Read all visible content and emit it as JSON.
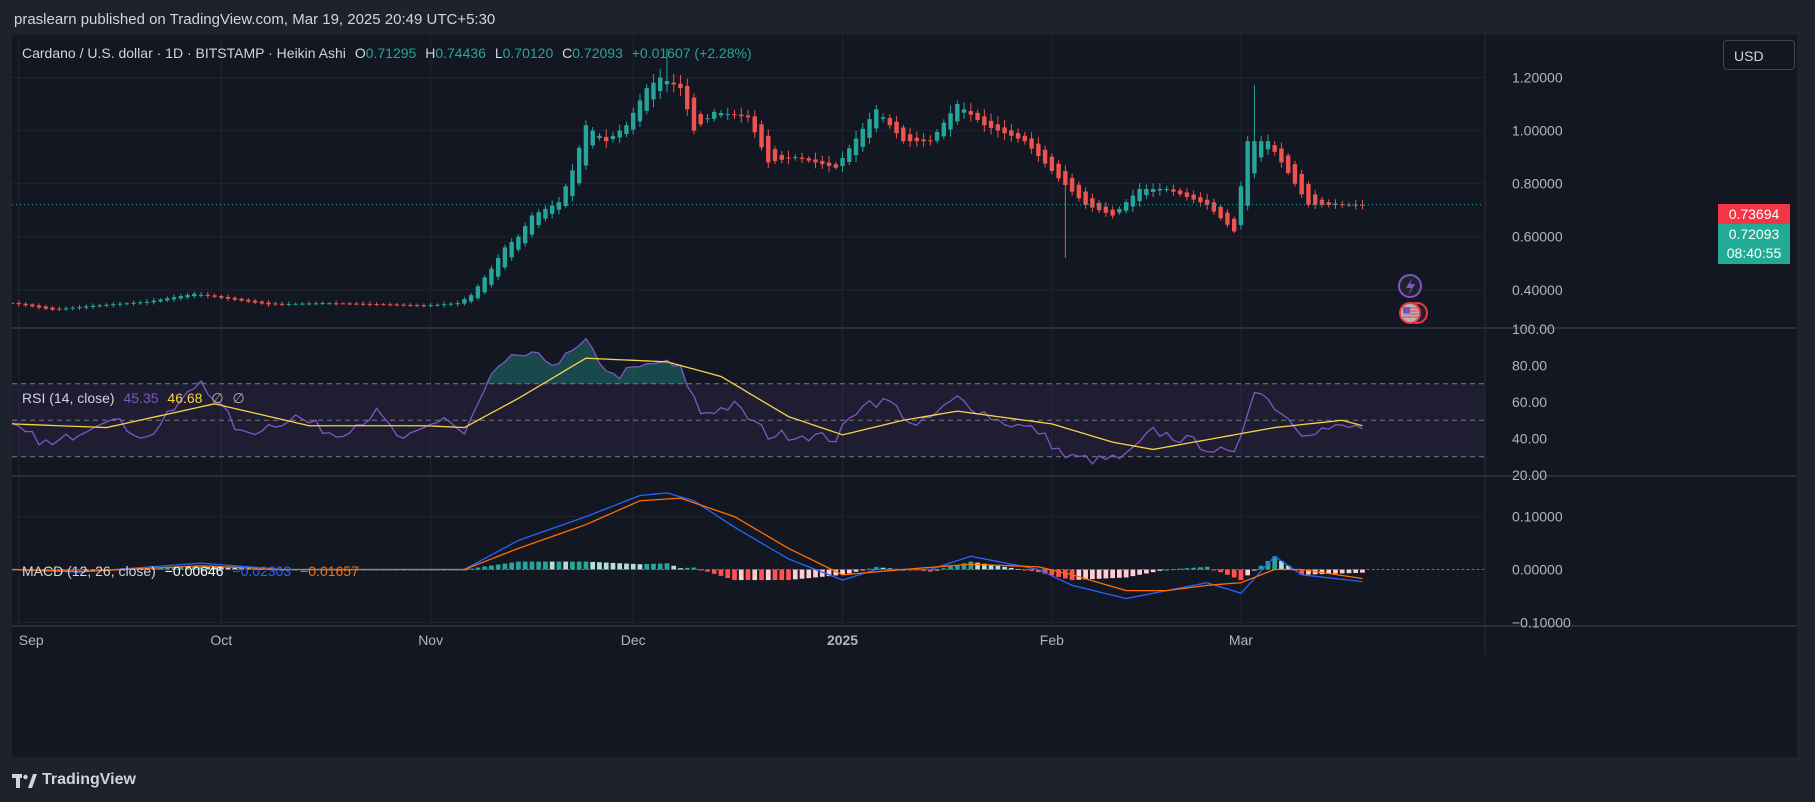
{
  "header": {
    "published": "praslearn published on TradingView.com, Mar 19, 2025 20:49 UTC+5:30"
  },
  "footer": {
    "brand": "TradingView"
  },
  "currency_button": "USD",
  "price_labels": {
    "previous": "0.73694",
    "last": "0.72093",
    "countdown": "08:40:55"
  },
  "colors": {
    "up": "#26a69a",
    "down": "#ef5350",
    "rsi": "#7e57c2",
    "rsi_ma": "#f7d348",
    "macd": "#2962ff",
    "signal": "#ff6d00",
    "hist_up_strong": "#26a69a",
    "hist_up_weak": "#b2dfdb",
    "hist_down_strong": "#ff5252",
    "hist_down_weak": "#ffcdd2",
    "background": "#131722"
  },
  "chart_data": [
    {
      "type": "candlestick",
      "title": "Cardano / U.S. dollar · 1D · BITSTAMP · Heikin Ashi",
      "ohlc_labels": {
        "o_key": "O",
        "o": "0.71295",
        "h_key": "H",
        "h": "0.74436",
        "l_key": "L",
        "l": "0.70120",
        "c_key": "C",
        "c": "0.72093",
        "change": "+0.01607 (+2.28%)"
      },
      "y_ticks": [
        "1.20000",
        "1.00000",
        "0.80000",
        "0.60000",
        "0.40000"
      ],
      "y_tick_values": [
        1.2,
        1.0,
        0.8,
        0.6,
        0.4
      ],
      "ylim": [
        0.26,
        1.36
      ],
      "x_ticks": [
        {
          "label": "Sep",
          "date": "2024-09-01",
          "bold": false
        },
        {
          "label": "Oct",
          "date": "2024-10-01",
          "bold": false
        },
        {
          "label": "Nov",
          "date": "2024-11-01",
          "bold": false
        },
        {
          "label": "Dec",
          "date": "2024-12-01",
          "bold": false
        },
        {
          "label": "2025",
          "date": "2025-01-01",
          "bold": true
        },
        {
          "label": "Feb",
          "date": "2025-02-01",
          "bold": false
        },
        {
          "label": "Mar",
          "date": "2025-03-01",
          "bold": false
        }
      ],
      "xlim": [
        "2024-08-31",
        "2025-04-06"
      ],
      "close_anchors": [
        [
          "2024-08-31",
          0.35
        ],
        [
          "2024-09-06",
          0.325
        ],
        [
          "2024-09-12",
          0.34
        ],
        [
          "2024-09-20",
          0.355
        ],
        [
          "2024-09-27",
          0.385
        ],
        [
          "2024-10-01",
          0.37
        ],
        [
          "2024-10-08",
          0.345
        ],
        [
          "2024-10-16",
          0.35
        ],
        [
          "2024-10-25",
          0.345
        ],
        [
          "2024-10-31",
          0.34
        ],
        [
          "2024-11-05",
          0.35
        ],
        [
          "2024-11-07",
          0.38
        ],
        [
          "2024-11-10",
          0.48
        ],
        [
          "2024-11-12",
          0.56
        ],
        [
          "2024-11-14",
          0.6
        ],
        [
          "2024-11-16",
          0.68
        ],
        [
          "2024-11-20",
          0.73
        ],
        [
          "2024-11-22",
          0.85
        ],
        [
          "2024-11-24",
          1.02
        ],
        [
          "2024-11-27",
          0.96
        ],
        [
          "2024-11-30",
          1.02
        ],
        [
          "2024-12-03",
          1.16
        ],
        [
          "2024-12-05",
          1.2
        ],
        [
          "2024-12-08",
          1.16
        ],
        [
          "2024-12-10",
          1.0
        ],
        [
          "2024-12-13",
          1.07
        ],
        [
          "2024-12-18",
          1.05
        ],
        [
          "2024-12-21",
          0.88
        ],
        [
          "2024-12-25",
          0.9
        ],
        [
          "2024-12-31",
          0.86
        ],
        [
          "2025-01-06",
          1.08
        ],
        [
          "2025-01-10",
          0.96
        ],
        [
          "2025-01-14",
          0.96
        ],
        [
          "2025-01-18",
          1.1
        ],
        [
          "2025-01-22",
          1.02
        ],
        [
          "2025-01-28",
          0.96
        ],
        [
          "2025-02-02",
          0.82
        ],
        [
          "2025-02-06",
          0.72
        ],
        [
          "2025-02-10",
          0.68
        ],
        [
          "2025-02-14",
          0.78
        ],
        [
          "2025-02-18",
          0.78
        ],
        [
          "2025-02-24",
          0.72
        ],
        [
          "2025-02-28",
          0.62
        ],
        [
          "2025-03-02",
          0.96
        ],
        [
          "2025-03-05",
          0.96
        ],
        [
          "2025-03-08",
          0.84
        ],
        [
          "2025-03-11",
          0.72
        ],
        [
          "2025-03-15",
          0.72
        ],
        [
          "2025-03-19",
          0.72
        ]
      ],
      "wick_spikes": [
        [
          "2025-02-03",
          0.52,
          "low"
        ],
        [
          "2025-03-03",
          1.17,
          "high"
        ],
        [
          "2024-12-06",
          1.31,
          "high"
        ]
      ]
    },
    {
      "type": "line",
      "title": "RSI (14, close)",
      "values_label": {
        "rsi": "45.35",
        "rsi_ma": "46.68"
      },
      "series": [
        {
          "name": "RSI",
          "anchors": [
            [
              "2024-08-31",
              46
            ],
            [
              "2024-09-06",
              36
            ],
            [
              "2024-09-14",
              52
            ],
            [
              "2024-09-20",
              40
            ],
            [
              "2024-09-28",
              72
            ],
            [
              "2024-10-04",
              42
            ],
            [
              "2024-10-12",
              52
            ],
            [
              "2024-10-18",
              42
            ],
            [
              "2024-10-24",
              54
            ],
            [
              "2024-10-28",
              38
            ],
            [
              "2024-11-03",
              52
            ],
            [
              "2024-11-06",
              42
            ],
            [
              "2024-11-10",
              74
            ],
            [
              "2024-11-14",
              86
            ],
            [
              "2024-11-20",
              82
            ],
            [
              "2024-11-24",
              92
            ],
            [
              "2024-11-28",
              74
            ],
            [
              "2024-12-05",
              82
            ],
            [
              "2024-12-08",
              78
            ],
            [
              "2024-12-11",
              54
            ],
            [
              "2024-12-16",
              58
            ],
            [
              "2024-12-21",
              42
            ],
            [
              "2024-12-26",
              42
            ],
            [
              "2024-12-31",
              40
            ],
            [
              "2025-01-04",
              60
            ],
            [
              "2025-01-08",
              60
            ],
            [
              "2025-01-12",
              46
            ],
            [
              "2025-01-18",
              62
            ],
            [
              "2025-01-24",
              50
            ],
            [
              "2025-01-30",
              44
            ],
            [
              "2025-02-03",
              30
            ],
            [
              "2025-02-08",
              28
            ],
            [
              "2025-02-12",
              30
            ],
            [
              "2025-02-16",
              44
            ],
            [
              "2025-02-22",
              38
            ],
            [
              "2025-02-28",
              30
            ],
            [
              "2025-03-03",
              68
            ],
            [
              "2025-03-06",
              58
            ],
            [
              "2025-03-10",
              44
            ],
            [
              "2025-03-16",
              46
            ],
            [
              "2025-03-19",
              46
            ]
          ]
        },
        {
          "name": "RSI-based MA",
          "anchors": [
            [
              "2024-08-31",
              48
            ],
            [
              "2024-09-14",
              46
            ],
            [
              "2024-09-30",
              59
            ],
            [
              "2024-10-14",
              47
            ],
            [
              "2024-10-31",
              47
            ],
            [
              "2024-11-06",
              46
            ],
            [
              "2024-11-14",
              62
            ],
            [
              "2024-11-24",
              84
            ],
            [
              "2024-12-06",
              82
            ],
            [
              "2024-12-14",
              74
            ],
            [
              "2024-12-24",
              52
            ],
            [
              "2025-01-01",
              42
            ],
            [
              "2025-01-10",
              50
            ],
            [
              "2025-01-18",
              55
            ],
            [
              "2025-02-01",
              48
            ],
            [
              "2025-02-10",
              38
            ],
            [
              "2025-02-16",
              34
            ],
            [
              "2025-02-22",
              38
            ],
            [
              "2025-02-28",
              42
            ],
            [
              "2025-03-06",
              46
            ],
            [
              "2025-03-16",
              50
            ],
            [
              "2025-03-19",
              47
            ]
          ]
        }
      ],
      "bands": {
        "upper": 70,
        "middle": 50,
        "lower": 30
      },
      "y_ticks": [
        "100.00",
        "80.00",
        "60.00",
        "40.00",
        "20.00"
      ],
      "y_tick_values": [
        100,
        80,
        60,
        40,
        20
      ],
      "ylim": [
        20,
        100
      ]
    },
    {
      "type": "macd",
      "title": "MACD (12, 26, close)",
      "values_label": {
        "hist": "−0.00646",
        "macd": "−0.02303",
        "signal": "−0.01657"
      },
      "series": [
        {
          "name": "MACD",
          "anchors": [
            [
              "2024-08-31",
              0
            ],
            [
              "2024-09-10",
              -0.005
            ],
            [
              "2024-09-28",
              0.012
            ],
            [
              "2024-10-10",
              0.0
            ],
            [
              "2024-10-31",
              0.0
            ],
            [
              "2024-11-06",
              0.0
            ],
            [
              "2024-11-14",
              0.055
            ],
            [
              "2024-11-24",
              0.1
            ],
            [
              "2024-12-02",
              0.14
            ],
            [
              "2024-12-06",
              0.145
            ],
            [
              "2024-12-10",
              0.13
            ],
            [
              "2024-12-16",
              0.08
            ],
            [
              "2024-12-24",
              0.02
            ],
            [
              "2025-01-01",
              -0.02
            ],
            [
              "2025-01-06",
              0.0
            ],
            [
              "2025-01-14",
              0.0
            ],
            [
              "2025-01-20",
              0.025
            ],
            [
              "2025-01-30",
              0.0
            ],
            [
              "2025-02-04",
              -0.03
            ],
            [
              "2025-02-12",
              -0.055
            ],
            [
              "2025-02-18",
              -0.04
            ],
            [
              "2025-02-24",
              -0.025
            ],
            [
              "2025-03-01",
              -0.045
            ],
            [
              "2025-03-06",
              0.025
            ],
            [
              "2025-03-10",
              -0.01
            ],
            [
              "2025-03-19",
              -0.023
            ]
          ]
        },
        {
          "name": "Signal",
          "anchors": [
            [
              "2024-08-31",
              0
            ],
            [
              "2024-09-10",
              -0.004
            ],
            [
              "2024-09-28",
              0.007
            ],
            [
              "2024-10-10",
              0.0
            ],
            [
              "2024-11-06",
              0.0
            ],
            [
              "2024-11-14",
              0.04
            ],
            [
              "2024-11-24",
              0.085
            ],
            [
              "2024-12-02",
              0.13
            ],
            [
              "2024-12-08",
              0.135
            ],
            [
              "2024-12-16",
              0.1
            ],
            [
              "2024-12-24",
              0.04
            ],
            [
              "2025-01-01",
              -0.01
            ],
            [
              "2025-01-10",
              0.0
            ],
            [
              "2025-01-20",
              0.01
            ],
            [
              "2025-01-30",
              0.005
            ],
            [
              "2025-02-04",
              -0.01
            ],
            [
              "2025-02-12",
              -0.04
            ],
            [
              "2025-02-18",
              -0.04
            ],
            [
              "2025-02-24",
              -0.03
            ],
            [
              "2025-03-01",
              -0.025
            ],
            [
              "2025-03-06",
              0.0
            ],
            [
              "2025-03-10",
              0.0
            ],
            [
              "2025-03-19",
              -0.017
            ]
          ]
        }
      ],
      "y_ticks": [
        "0.10000",
        "0.00000",
        "−0.10000"
      ],
      "y_tick_values": [
        0.1,
        0.0,
        -0.1
      ],
      "ylim": [
        -0.105,
        0.175
      ]
    }
  ]
}
